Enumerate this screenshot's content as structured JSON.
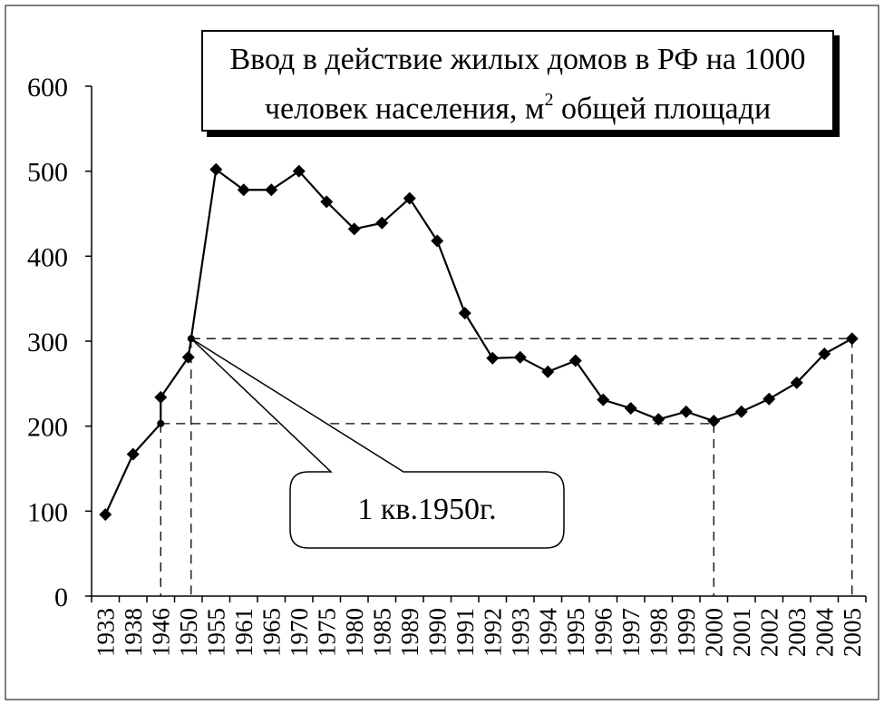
{
  "chart_data": {
    "type": "line",
    "title_line1": "Ввод в действие жилых домов в РФ на 1000",
    "title_line2_pre": "человек населения, м",
    "title_line2_sup": "2",
    "title_line2_post": " общей площади",
    "ylim": [
      0,
      600
    ],
    "yticks": [
      0,
      100,
      200,
      300,
      400,
      500,
      600
    ],
    "categories": [
      "1933",
      "1938",
      "1946",
      "1950",
      "1955",
      "1961",
      "1965",
      "1970",
      "1975",
      "1980",
      "1985",
      "1989",
      "1990",
      "1991",
      "1992",
      "1993",
      "1994",
      "1995",
      "1996",
      "1997",
      "1998",
      "1999",
      "2000",
      "2001",
      "2002",
      "2003",
      "2004",
      "2005"
    ],
    "values": [
      96,
      167,
      234,
      281,
      502,
      478,
      478,
      500,
      464,
      432,
      439,
      468,
      418,
      333,
      280,
      281,
      264,
      277,
      231,
      221,
      208,
      217,
      206,
      217,
      232,
      251,
      285,
      303
    ],
    "reference_points": [
      {
        "after_index": 1,
        "fraction": 1.0,
        "value": 203
      },
      {
        "after_index": 3,
        "fraction": 0.1,
        "value": 303
      }
    ],
    "reference_lines": [
      {
        "value": 303,
        "from_ref": 1,
        "to_index": 27
      },
      {
        "value": 203,
        "from_ref": 0,
        "to_index": 22
      }
    ],
    "annotation": "1 кв.1950г.",
    "marker": "diamond",
    "line_color": "#000000"
  }
}
